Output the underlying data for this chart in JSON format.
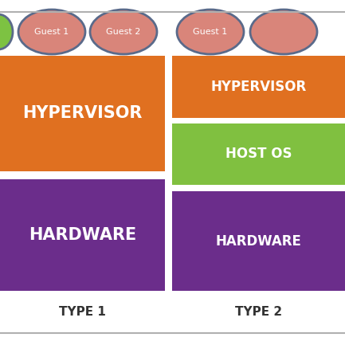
{
  "bg_color": "#ffffff",
  "divider_color": "#b0b0b0",
  "guest_ellipse_face": "#d9857a",
  "guest_ellipse_edge": "#5a6a8a",
  "guest_green_face": "#7dc242",
  "hypervisor_color": "#e07020",
  "host_os_color": "#80c040",
  "hardware_color": "#6b2d8b",
  "type1_label": "TYPE 1",
  "type2_label": "TYPE 2",
  "hypervisor_label": "HYPERVISOR",
  "host_os_label": "HOST OS",
  "hardware_label": "HARDWARE",
  "guest1_label": "Guest 1",
  "guest2_label": "Guest 2",
  "text_color": "#ffffff",
  "type_text_color": "#333333"
}
